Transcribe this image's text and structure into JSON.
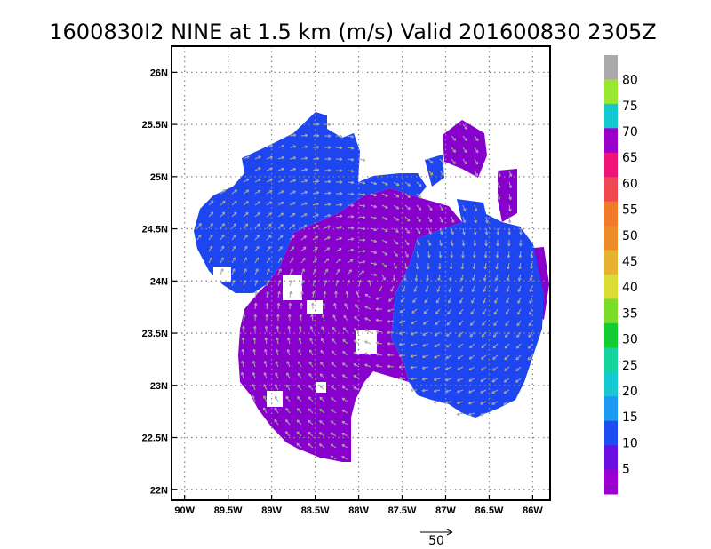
{
  "chart_data": {
    "type": "heatmap",
    "title": "1600830I2 NINE at 1.5 km (m/s) Valid 201600830 2305Z",
    "x_ticks": [
      "90W",
      "89.5W",
      "89W",
      "88.5W",
      "88W",
      "87.5W",
      "87W",
      "86.5W",
      "86W"
    ],
    "x_tick_values": [
      -90,
      -89.5,
      -89,
      -88.5,
      -88,
      -87.5,
      -87,
      -86.5,
      -86
    ],
    "y_ticks": [
      "26N",
      "25.5N",
      "25N",
      "24.5N",
      "24N",
      "23.5N",
      "23N",
      "22.5N",
      "22N"
    ],
    "y_tick_values": [
      26,
      25.5,
      25,
      24.5,
      24,
      23.5,
      23,
      22.5,
      22
    ],
    "xlim": [
      -90.15,
      -85.8
    ],
    "ylim": [
      21.9,
      26.25
    ],
    "grid": true,
    "colorbar": {
      "labels": [
        "5",
        "10",
        "15",
        "20",
        "25",
        "30",
        "35",
        "40",
        "45",
        "50",
        "55",
        "60",
        "65",
        "70",
        "75",
        "80"
      ],
      "colors": [
        "#9b00d2",
        "#6a10e0",
        "#1f4bf5",
        "#1a9af0",
        "#15c8d2",
        "#14d49a",
        "#14cc30",
        "#7bdc2a",
        "#dcdc34",
        "#e6b230",
        "#ec8c2a",
        "#f2782a",
        "#f04852",
        "#f01478",
        "#9b00cc",
        "#14c8d2",
        "#9be632",
        "#aaaaaa"
      ]
    },
    "wind_classes": [
      {
        "range": "5-10",
        "color": "#8800cc"
      },
      {
        "range": "10-15",
        "color": "#1e46f0"
      }
    ],
    "reference_vector_label": "50",
    "colors": {
      "arrow": "#a8a8a8",
      "purple": "#8800cc",
      "blue": "#1e46f0"
    }
  }
}
